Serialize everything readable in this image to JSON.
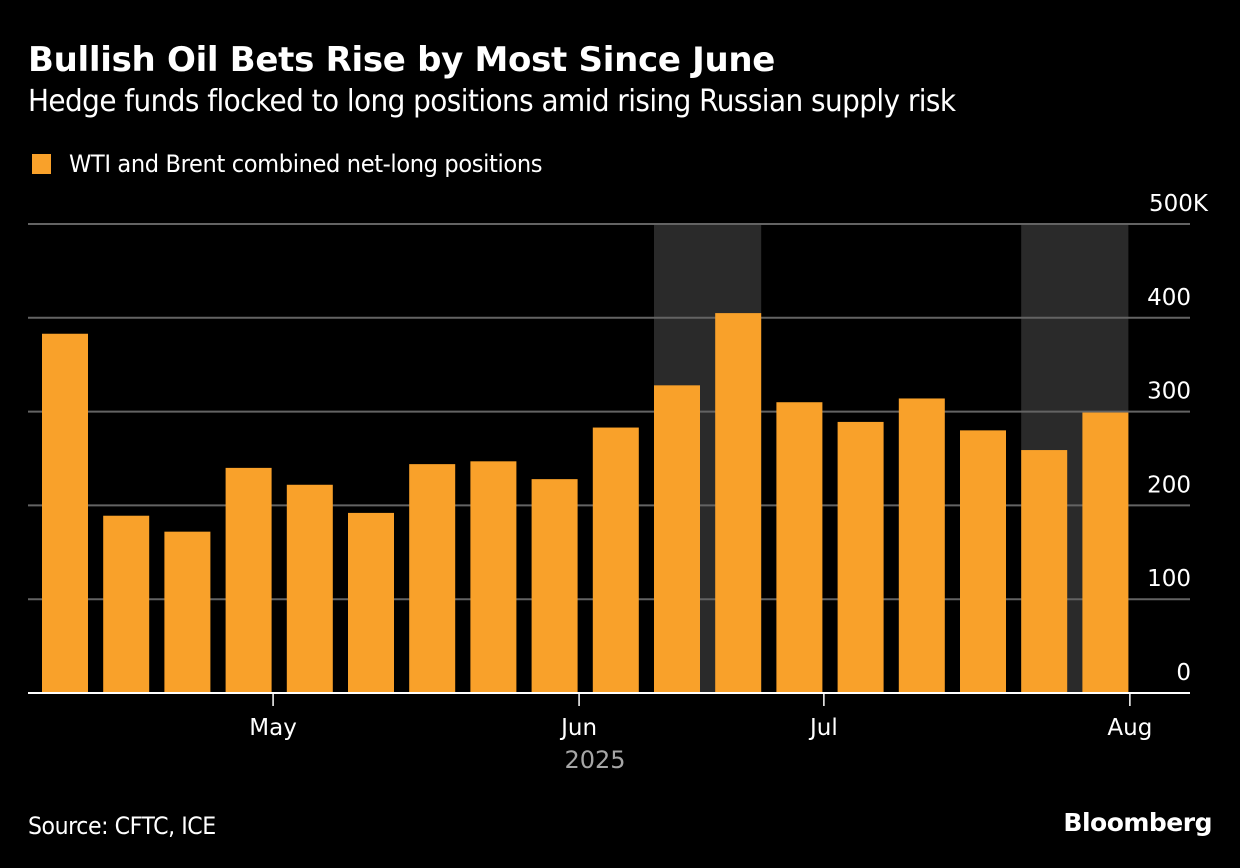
{
  "header": {
    "title": "Bullish Oil Bets Rise by Most Since June",
    "subtitle": "Hedge funds flocked to long positions amid rising Russian supply risk"
  },
  "footer": {
    "source": "Source: CFTC, ICE",
    "brand": "Bloomberg"
  },
  "colors": {
    "background": "#000000",
    "bar": "#F9A12A",
    "shade": "#2A2A2A",
    "grid": "#636363",
    "axis": "#FFFFFF",
    "year_label": "#A6A6A6"
  },
  "chart_data": {
    "type": "bar",
    "title": "Bullish Oil Bets Rise by Most Since June",
    "subtitle": "Hedge funds flocked to long positions amid rising Russian supply risk",
    "xlabel": "2025",
    "ylabel": "",
    "legend": {
      "position": "top-left",
      "entries": [
        "WTI and Brent combined net-long positions"
      ]
    },
    "series": [
      {
        "name": "WTI and Brent combined net-long positions",
        "unit": "K",
        "values": [
          383,
          189,
          172,
          240,
          222,
          192,
          244,
          247,
          228,
          283,
          328,
          405,
          310,
          289,
          314,
          280,
          259,
          299
        ]
      }
    ],
    "shaded_bar_ranges": [
      [
        10,
        11
      ],
      [
        16,
        17
      ]
    ],
    "x_ticks": [
      {
        "label": "May",
        "at_bar": 3.4
      },
      {
        "label": "Jun",
        "at_bar": 8.4
      },
      {
        "label": "Jul",
        "at_bar": 12.4
      },
      {
        "label": "Aug",
        "at_bar": 17.4
      }
    ],
    "year_label": "2025",
    "y_ticks": [
      0,
      100,
      200,
      300,
      400,
      500
    ],
    "y_tick_labels": [
      "0",
      "100",
      "200",
      "300",
      "400",
      "500K"
    ],
    "ylim": [
      0,
      500
    ],
    "y_axis_side": "right",
    "grid": true
  }
}
